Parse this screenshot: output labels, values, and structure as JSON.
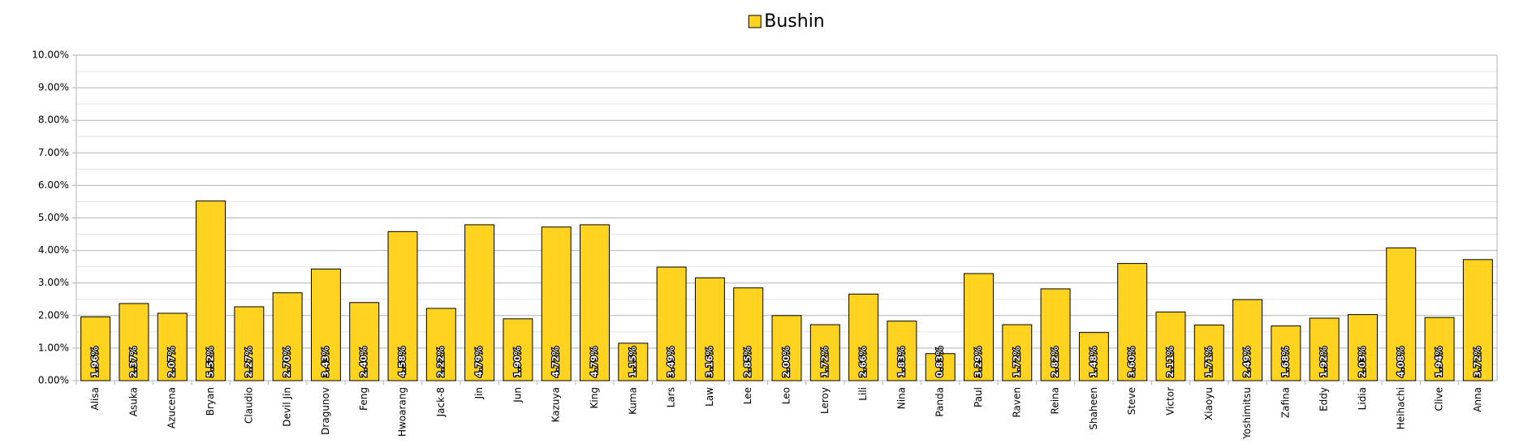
{
  "chart_data": {
    "type": "bar",
    "categories": [
      "Alisa",
      "Asuka",
      "Azucena",
      "Bryan",
      "Claudio",
      "Devil Jin",
      "Dragunov",
      "Feng",
      "Hwoarang",
      "Jack-8",
      "Jin",
      "Jun",
      "Kazuya",
      "King",
      "Kuma",
      "Lars",
      "Law",
      "Lee",
      "Leo",
      "Leroy",
      "Lili",
      "Nina",
      "Panda",
      "Paul",
      "Raven",
      "Reina",
      "Shaheen",
      "Steve",
      "Victor",
      "Xiaoyu",
      "Yoshimitsu",
      "Zafina",
      "Eddy",
      "Lidia",
      "Heihachi",
      "Clive",
      "Anna"
    ],
    "series": [
      {
        "name": "Bushin",
        "color": "#ffd320",
        "values": [
          1.96,
          2.37,
          2.07,
          5.52,
          2.27,
          2.7,
          3.43,
          2.4,
          4.58,
          2.22,
          4.79,
          1.9,
          4.72,
          4.79,
          1.15,
          3.49,
          3.16,
          2.85,
          2.0,
          1.72,
          2.66,
          1.83,
          0.83,
          3.29,
          1.72,
          2.82,
          1.48,
          3.6,
          2.11,
          1.71,
          2.49,
          1.68,
          1.92,
          2.03,
          4.08,
          1.94,
          3.72
        ],
        "value_labels": [
          "1.96%",
          "2.37%",
          "2.07%",
          "5.52%",
          "2.27%",
          "2.70%",
          "3.43%",
          "2.40%",
          "4.58%",
          "2.22%",
          "4.79%",
          "1.90%",
          "4.72%",
          "4.79%",
          "1.15%",
          "3.49%",
          "3.16%",
          "2.85%",
          "2.00%",
          "1.72%",
          "2.66%",
          "1.83%",
          "0.83%",
          "3.29%",
          "1.72%",
          "2.82%",
          "1.48%",
          "3.60%",
          "2.11%",
          "1.71%",
          "2.49%",
          "1.68%",
          "1.92%",
          "2.03%",
          "4.08%",
          "1.94%",
          "3.72%"
        ]
      }
    ],
    "ylim": [
      0,
      10
    ],
    "yticks": [
      {
        "value": 0,
        "label": "0.00%"
      },
      {
        "value": 1,
        "label": "1.00%"
      },
      {
        "value": 2,
        "label": "2.00%"
      },
      {
        "value": 3,
        "label": "3.00%"
      },
      {
        "value": 4,
        "label": "4.00%"
      },
      {
        "value": 5,
        "label": "5.00%"
      },
      {
        "value": 6,
        "label": "6.00%"
      },
      {
        "value": 7,
        "label": "7.00%"
      },
      {
        "value": 8,
        "label": "8.00%"
      },
      {
        "value": 9,
        "label": "9.00%"
      },
      {
        "value": 10,
        "label": "10.00%"
      }
    ],
    "minor_yticks": [
      0.5,
      1.5,
      2.5,
      3.5,
      4.5,
      5.5,
      6.5,
      7.5,
      8.5,
      9.5
    ],
    "grid": true,
    "legend": "top"
  }
}
